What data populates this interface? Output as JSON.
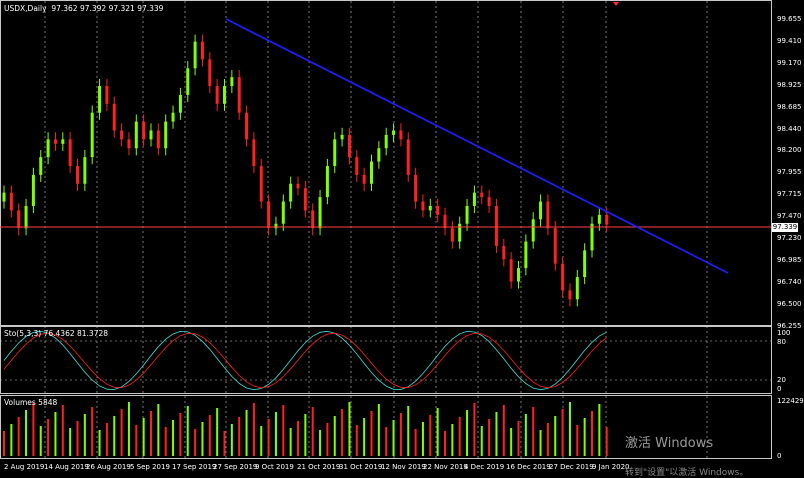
{
  "main_panel": {
    "symbol_label": "USDX,Daily",
    "ohlc": "97.362 97.392 97.321 97.339",
    "price_levels": [
      "99.655",
      "99.410",
      "99.170",
      "98.925",
      "98.685",
      "98.440",
      "98.200",
      "97.955",
      "97.715",
      "97.470",
      "97.230",
      "96.985",
      "96.740",
      "96.500",
      "96.255"
    ],
    "current_price": "97.339"
  },
  "stoch_panel": {
    "label": "Sto(5,3,3) 76.4362 81.3728",
    "levels": [
      "100",
      "80",
      "20",
      "0"
    ]
  },
  "volume_panel": {
    "label": "Volumes 5848",
    "levels": [
      "122429",
      "0"
    ]
  },
  "date_axis": [
    "2 Aug 2019",
    "14 Aug 2019",
    "26 Aug 2019",
    "5 Sep 2019",
    "17 Sep 2019",
    "27 Sep 2019",
    "9 Oct 2019",
    "21 Oct 2019",
    "31 Oct 2019",
    "12 Nov 2019",
    "22 Nov 2019",
    "4 Dec 2019",
    "16 Dec 2019",
    "27 Dec 2019",
    "9 Jan 2020"
  ],
  "watermark": {
    "line1": "激活 Windows",
    "line2": "转到\"设置\"以激活 Windows。"
  },
  "colors": {
    "bull": "#7fff00",
    "bear": "#ff2020",
    "trendline": "#1e1eff",
    "grid": "#c8c8c8",
    "price_line": "#ff4040",
    "stoch_main": "#40e0d0",
    "stoch_signal": "#ff2020"
  }
}
